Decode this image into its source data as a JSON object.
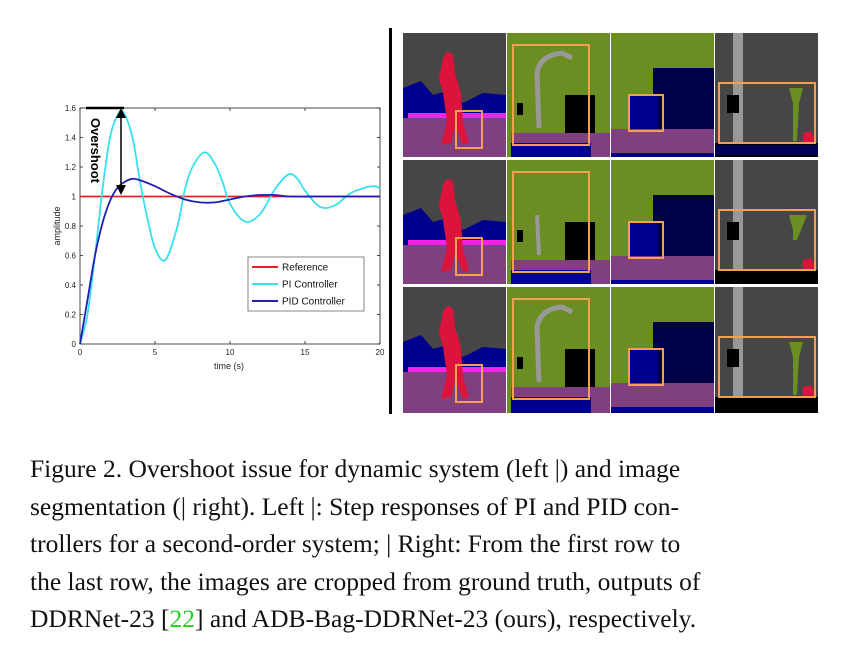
{
  "chart_data": {
    "type": "line",
    "xlabel": "time (s)",
    "ylabel": "amplitude",
    "xlim": [
      0,
      20
    ],
    "ylim": [
      0,
      1.6
    ],
    "xticks": [
      0,
      5,
      10,
      15,
      20
    ],
    "yticks": [
      0,
      0.2,
      0.4,
      0.6,
      0.8,
      1,
      1.2,
      1.4,
      1.6
    ],
    "grid": false,
    "legend_position": "bottom-right",
    "annotation": "Overshoot",
    "series": [
      {
        "name": "Reference",
        "color": "#e32222",
        "x": [
          0,
          20
        ],
        "y": [
          1,
          1
        ]
      },
      {
        "name": "PI Controller",
        "color": "#38e0ee",
        "x": [
          0,
          0.5,
          1,
          1.5,
          2,
          2.5,
          2.9,
          3.5,
          4,
          4.5,
          5,
          5.7,
          6.5,
          7,
          7.5,
          8.3,
          9,
          9.5,
          10,
          11,
          12,
          13,
          13.9,
          14.5,
          15,
          16,
          17,
          18,
          19,
          19.7,
          20
        ],
        "y": [
          0,
          0.2,
          0.6,
          1.05,
          1.4,
          1.55,
          1.57,
          1.4,
          1.1,
          0.85,
          0.65,
          0.57,
          0.8,
          1.05,
          1.2,
          1.3,
          1.22,
          1.1,
          0.95,
          0.83,
          0.88,
          1.05,
          1.15,
          1.12,
          1.04,
          0.93,
          0.94,
          1.02,
          1.06,
          1.07,
          1.05
        ]
      },
      {
        "name": "PID Controller",
        "color": "#1f1fb4",
        "x": [
          0,
          0.5,
          1,
          1.5,
          2,
          2.5,
          3,
          3.5,
          4,
          5,
          6,
          7,
          8,
          9,
          10,
          11,
          12,
          13,
          14,
          16,
          18,
          20
        ],
        "y": [
          0,
          0.3,
          0.6,
          0.82,
          0.97,
          1.06,
          1.1,
          1.12,
          1.11,
          1.07,
          1.02,
          0.98,
          0.96,
          0.96,
          0.98,
          1.0,
          1.01,
          1.01,
          1.0,
          1.0,
          1.0,
          1.0
        ]
      }
    ]
  },
  "caption": {
    "line1": "Figure 2. Overshoot issue for dynamic system (left |) and image",
    "line2": "segmentation (| right). Left |: Step responses of PI and PID con-",
    "line3": "trollers for a second-order system; | Right: From the first row to",
    "line4": "the last row, the images are cropped from ground truth, outputs of",
    "line5_pre": "DDRNet-23 [",
    "line5_cite": "22",
    "line5_post": "] and ADB-Bag-DDRNet-23 (ours), respectively."
  },
  "colors": {
    "road": "#804080",
    "sidewalk": "#f423e8",
    "building": "#464646",
    "vegetation": "#6b8e23",
    "sky": "#4682b4",
    "person": "#dc143c",
    "car": "#00008e",
    "truck": "#000046",
    "pole": "#999999",
    "crop_box": "#f5a050"
  }
}
